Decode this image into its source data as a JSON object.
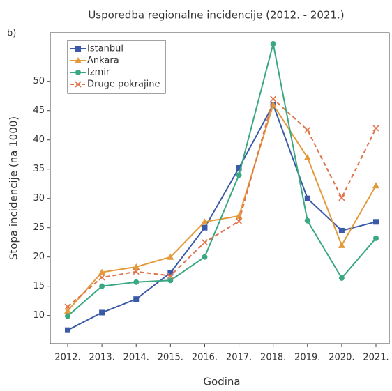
{
  "chart_data": {
    "type": "line",
    "panel_label": "b)",
    "title": "Usporedba regionalne incidencije (2012. - 2021.)",
    "x_label": "Godina",
    "y_label": "Stopa incidencije (na 1000)",
    "categories": [
      "2012.",
      "2013.",
      "2014.",
      "2015.",
      "2016.",
      "2017.",
      "2018.",
      "2019.",
      "2020.",
      "2021."
    ],
    "ylim": [
      5.2,
      58.3
    ],
    "yticks": [
      10,
      15,
      20,
      25,
      30,
      35,
      40,
      45,
      50
    ],
    "grid": false,
    "legend": "upper left",
    "series": [
      {
        "name": "Istanbul",
        "color": "#3a5aa8",
        "marker": "square",
        "dash": false,
        "values": [
          7.5,
          10.5,
          12.8,
          17.3,
          25,
          35.2,
          46,
          30,
          24.5,
          26
        ]
      },
      {
        "name": "Ankara",
        "color": "#e29a3a",
        "marker": "triangle",
        "dash": false,
        "values": [
          10.8,
          17.4,
          18.3,
          20,
          26,
          27,
          46,
          37,
          22,
          32.2
        ]
      },
      {
        "name": "Izmir",
        "color": "#3aa882",
        "marker": "circle",
        "dash": false,
        "values": [
          9.9,
          15,
          15.7,
          16,
          20,
          34,
          56.4,
          26.2,
          16.4,
          23.2
        ]
      },
      {
        "name": "Druge pokrajine",
        "color": "#e0734a",
        "marker": "x",
        "dash": true,
        "values": [
          11.5,
          16.5,
          17.5,
          16.8,
          22.5,
          26.1,
          47,
          41.7,
          30.1,
          42
        ]
      }
    ]
  }
}
